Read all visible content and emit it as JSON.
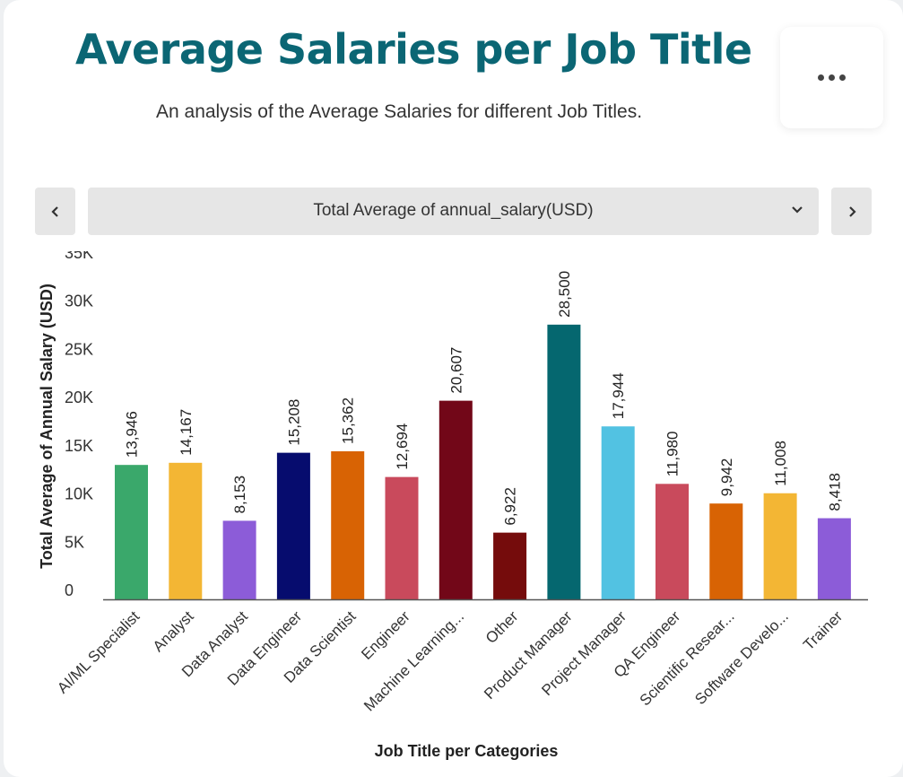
{
  "header": {
    "title": "Average Salaries per Job Title",
    "subtitle": "An analysis of the Average Salaries for different Job Titles."
  },
  "controls": {
    "measure_label": "Total Average of annual_salary(USD)",
    "menu_icon": "more-horizontal-icon",
    "prev_icon": "chevron-left-icon",
    "next_icon": "chevron-right-icon",
    "dropdown_icon": "chevron-down-icon"
  },
  "chart_data": {
    "type": "bar",
    "title": "",
    "xlabel": "Job Title per Categories",
    "ylabel": "Total Average of Annual Salary (USD)",
    "ylim": [
      0,
      35000
    ],
    "yticks": [
      0,
      5000,
      10000,
      15000,
      20000,
      25000,
      30000,
      35000
    ],
    "ytick_labels": [
      "0",
      "5K",
      "10K",
      "15K",
      "20K",
      "25K",
      "30K",
      "35K"
    ],
    "grid": false,
    "categories": [
      "AI/ML Specialist",
      "Analyst",
      "Data Analyst",
      "Data Engineer",
      "Data Scientist",
      "Engineer",
      "Machine Learning...",
      "Other",
      "Product Manager",
      "Project Manager",
      "QA Engineer",
      "Scientific Resear...",
      "Software Develo...",
      "Trainer"
    ],
    "values": [
      13946,
      14167,
      8153,
      15208,
      15362,
      12694,
      20607,
      6922,
      28500,
      17944,
      11980,
      9942,
      11008,
      8418
    ],
    "value_labels": [
      "13,946",
      "14,167",
      "8,153",
      "15,208",
      "15,362",
      "12,694",
      "20,607",
      "6,922",
      "28,500",
      "17,944",
      "11,980",
      "9,942",
      "11,008",
      "8,418"
    ],
    "colors": [
      "#3aa86b",
      "#f3b634",
      "#8c5cd8",
      "#060c6e",
      "#d86304",
      "#c94a5c",
      "#720718",
      "#750c0c",
      "#05676f",
      "#52c2e2",
      "#c94a5c",
      "#d86304",
      "#f3b634",
      "#8c5cd8"
    ]
  }
}
